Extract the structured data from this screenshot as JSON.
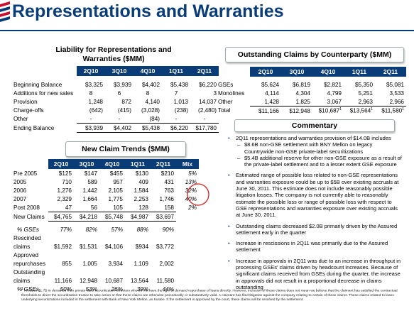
{
  "page": {
    "title": "Representations and Warranties"
  },
  "liability": {
    "title_line1": "Liability for Representations and",
    "title_line2": "Warranties ($MM)",
    "headers": [
      "2Q10",
      "3Q10",
      "4Q10",
      "1Q11",
      "2Q11"
    ],
    "rows": [
      {
        "label": "Beginning Balance",
        "values": [
          "$3,325",
          "$3,939",
          "$4,402",
          "$5,438",
          "$6,220"
        ]
      },
      {
        "label": "Additions for new sales",
        "values": [
          "8",
          "6",
          "8",
          "7",
          "3"
        ]
      },
      {
        "label": "Provision",
        "values": [
          "1,248",
          "872",
          "4,140",
          "1,013",
          "14,037"
        ]
      },
      {
        "label": "Charge-offs",
        "values": [
          "(642)",
          "(415)",
          "(3,028)",
          "(238)",
          "(2,480)"
        ]
      },
      {
        "label": "Other",
        "values": [
          "-",
          "-",
          "(84)",
          "-",
          "-"
        ]
      },
      {
        "label": "Ending Balance",
        "values": [
          "$3,939",
          "$4,402",
          "$5,438",
          "$6,220",
          "$17,780"
        ]
      }
    ]
  },
  "claims_new": {
    "title": "New Claim Trends ($MM)",
    "headers": [
      "2Q10",
      "3Q10",
      "4Q10",
      "1Q11",
      "2Q11",
      "Mix"
    ],
    "rows": [
      {
        "label": "Pre 2005",
        "values": [
          "$125",
          "$147",
          "$455",
          "$130",
          "$210"
        ],
        "mix": "5%"
      },
      {
        "label": "2005",
        "values": [
          "710",
          "589",
          "957",
          "409",
          "431"
        ],
        "mix": "13%"
      },
      {
        "label": "2006",
        "values": [
          "1,276",
          "1,442",
          "2,105",
          "1,584",
          "763"
        ],
        "mix": "32%"
      },
      {
        "label": "2007",
        "values": [
          "2,329",
          "1,664",
          "1,775",
          "2,253",
          "1,746"
        ],
        "mix": "40%"
      },
      {
        "label": "Post 2008",
        "values": [
          "47",
          "56",
          "105",
          "128",
          "158"
        ],
        "mix": "2%"
      },
      {
        "label": "New Claims",
        "values": [
          "$4,765",
          "$4,218",
          "$5,748",
          "$4,987",
          "$3,697"
        ],
        "mix": ""
      },
      {
        "label": "% GSEs",
        "values": [
          "77%",
          "82%",
          "57%",
          "88%",
          "90%"
        ],
        "mix": ""
      }
    ],
    "rescinded": {
      "label1": "Rescinded",
      "label2": "claims",
      "values": [
        "$1,592",
        "$1,531",
        "$4,106",
        "$934",
        "$3,772"
      ]
    },
    "approved": {
      "label1": "Approved",
      "label2": "repurchases",
      "values": [
        "855",
        "1,005",
        "3,934",
        "1,109",
        "2,002"
      ]
    },
    "outstanding": {
      "label1": "Outstanding",
      "label2": "claims",
      "values": [
        "11,166",
        "12,948",
        "10,687",
        "13,564",
        "11,580"
      ]
    },
    "gse_pct": {
      "label": "% GSEs",
      "values": [
        "50%",
        "53%",
        "26%",
        "39%",
        "44%"
      ]
    }
  },
  "counterparty": {
    "title": "Outstanding Claims by Counterparty ($MM)",
    "headers": [
      "2Q10",
      "3Q10",
      "4Q10",
      "1Q11",
      "2Q11"
    ],
    "rows": [
      {
        "label": "GSEs",
        "values": [
          "$5,624",
          "$6,819",
          "$2,821",
          "$5,350",
          "$5,081"
        ]
      },
      {
        "label": "Monolines",
        "values": [
          "4,114",
          "4,304",
          "4,799",
          "5,251",
          "3,533"
        ]
      },
      {
        "label": "Other",
        "values": [
          "1,428",
          "1,825",
          "3,067",
          "2,963",
          "2,966"
        ]
      },
      {
        "label": "Total",
        "values": [
          "$11,166",
          "$12,948",
          "$10,687",
          "$13,564",
          "$11,580"
        ],
        "sup": [
          "",
          "",
          "1",
          "1",
          "1"
        ]
      }
    ]
  },
  "commentary": {
    "title": "Commentary",
    "b1": "2Q11 representations and warranties provision of $14.0B includes",
    "b1s1": "$8.6B non-GSE settlement with BNY Mellon on legacy Countrywide non-GSE private-label securitizations",
    "b1s2": "$5.4B additional reserve for other non-GSE exposure as a result of the private-label settlement and to a lesser extent GSE exposure",
    "b2": "Estimated range of possible loss related to non-GSE representations and warranties exposure could be up to $5B over existing accruals at June 30, 2011. This estimate does not include reasonably possible litigation losses. The company is not currently able to reasonably estimate the possible loss or range of possible loss with respect to GSE representations and warranties exposure over existing accruals at June 30, 2011.",
    "b3": "Outstanding claims decreased $2.0B primarily driven by the Assured settlement early in the quarter",
    "b4": "Increase in rescissions in 2Q11 was primarily due to the Assured settlement",
    "b5": "Increase in approvals in 2Q11 was due to an increase in throughput in processing GSEs' claims driven by headcount increases. Because of significant claims received from GSEs during the quarter, the increase in approvals did not result in a proportional decrease in claims outstanding"
  },
  "footnote": {
    "mark": "1",
    "text": "Includes $1.7B in demands from private-label securitization investors who do not have the right to demand repurchase of loans directly. However, inclusion of these claims does not mean we believe that the claimant has satisfied the contractual thresholds to direct the securitization trustee to take action or that these claims are otherwise procedurally or substantively valid. A claimant has filed litigation against the company relating to certain of these claims. These claims related to loans underlying securitizations included in the settlement with Bank of New York Mellon, as trustee. If the settlement is approved by the court, these claims will be resolved by the settlement."
  },
  "colors": {
    "navy": "#0a3c78",
    "logo_red": "#c8102e",
    "circle_red": "#d02020"
  }
}
